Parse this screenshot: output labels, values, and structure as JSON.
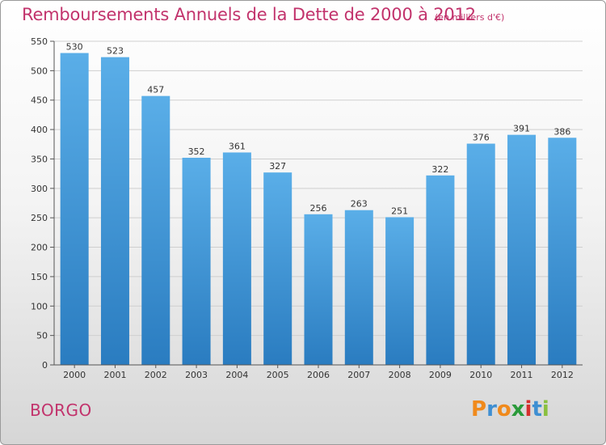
{
  "chart_data": {
    "type": "bar",
    "title": "Remboursements Annuels de la Dette de 2000 à 2012",
    "subtitle": "(en milliers d'€)",
    "categories": [
      "2000",
      "2001",
      "2002",
      "2003",
      "2004",
      "2005",
      "2006",
      "2007",
      "2008",
      "2009",
      "2010",
      "2011",
      "2012"
    ],
    "values": [
      530,
      523,
      457,
      352,
      361,
      327,
      256,
      263,
      251,
      322,
      376,
      391,
      386
    ],
    "ylim": [
      0,
      550
    ],
    "yticks": [
      0,
      50,
      100,
      150,
      200,
      250,
      300,
      350,
      400,
      450,
      500,
      550
    ],
    "grid": true,
    "bar_color_top": "#5aaee8",
    "bar_color_bottom": "#2a7cc0"
  },
  "commune": "BORGO",
  "logo": {
    "letters": [
      "P",
      "r",
      "o",
      "x",
      "i",
      "t",
      "i"
    ],
    "colors": [
      "#f08a1c",
      "#3f8fd2",
      "#f08a1c",
      "#2a9a3a",
      "#d6302f",
      "#3f8fd2",
      "#8ac03f"
    ]
  }
}
